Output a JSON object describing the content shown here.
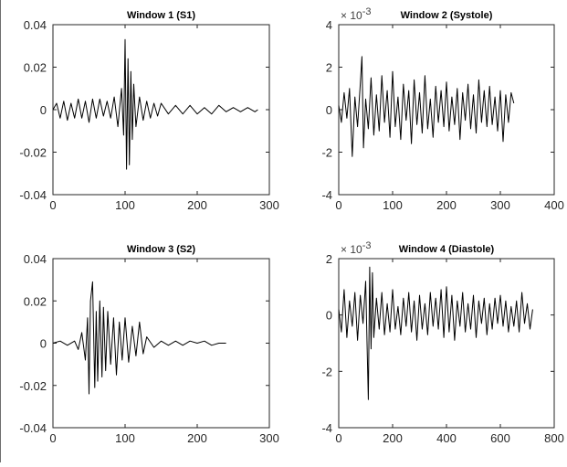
{
  "chart_data": [
    {
      "type": "line",
      "title": "Window 1 (S1)",
      "exponent_label": "",
      "xlim": [
        0,
        300
      ],
      "ylim": [
        -0.04,
        0.04
      ],
      "xticks": [
        0,
        100,
        200,
        300
      ],
      "yticks": [
        -0.04,
        -0.02,
        0,
        0.02,
        0.04
      ],
      "xtick_labels": [
        "0",
        "100",
        "200",
        "300"
      ],
      "ytick_labels": [
        "-0.04",
        "-0.02",
        "0",
        "0.02",
        "0.04"
      ],
      "grid": false,
      "series": [
        {
          "color": "#000000",
          "x": [
            0,
            5,
            10,
            15,
            20,
            25,
            30,
            35,
            40,
            45,
            50,
            55,
            60,
            65,
            70,
            75,
            80,
            85,
            90,
            95,
            98,
            100,
            102,
            104,
            106,
            108,
            110,
            112,
            115,
            120,
            125,
            130,
            135,
            140,
            145,
            150,
            160,
            170,
            180,
            190,
            200,
            210,
            220,
            230,
            240,
            250,
            260,
            270,
            280,
            284
          ],
          "y": [
            0.0,
            0.003,
            -0.004,
            0.004,
            -0.005,
            0.003,
            -0.004,
            0.005,
            -0.004,
            0.004,
            -0.006,
            0.005,
            -0.004,
            0.005,
            -0.003,
            0.004,
            -0.004,
            0.006,
            -0.008,
            0.01,
            -0.012,
            0.033,
            -0.028,
            0.024,
            -0.026,
            0.018,
            -0.014,
            0.012,
            -0.008,
            0.006,
            -0.005,
            0.004,
            -0.004,
            0.003,
            -0.003,
            0.003,
            -0.002,
            0.002,
            -0.002,
            0.002,
            -0.002,
            0.001,
            -0.002,
            0.002,
            -0.001,
            0.001,
            -0.001,
            0.001,
            -0.001,
            0.0
          ]
        }
      ]
    },
    {
      "type": "line",
      "title": "Window 2 (Systole)",
      "exponent_label": "× 10-3",
      "xlim": [
        0,
        400
      ],
      "ylim": [
        -4,
        4
      ],
      "xticks": [
        0,
        100,
        200,
        300,
        400
      ],
      "yticks": [
        -4,
        -2,
        0,
        2,
        4
      ],
      "xtick_labels": [
        "0",
        "100",
        "200",
        "300",
        "400"
      ],
      "ytick_labels": [
        "-4",
        "-2",
        "0",
        "2",
        "4"
      ],
      "grid": false,
      "series": [
        {
          "color": "#000000",
          "x": [
            0,
            5,
            10,
            15,
            20,
            25,
            30,
            35,
            40,
            43,
            46,
            50,
            55,
            60,
            65,
            70,
            75,
            80,
            85,
            90,
            95,
            100,
            105,
            110,
            115,
            120,
            125,
            130,
            135,
            140,
            145,
            150,
            155,
            160,
            165,
            170,
            175,
            180,
            185,
            190,
            195,
            200,
            205,
            210,
            215,
            220,
            225,
            230,
            235,
            240,
            245,
            250,
            255,
            260,
            265,
            270,
            275,
            280,
            285,
            290,
            295,
            300,
            305,
            310,
            315,
            320,
            325
          ],
          "y": [
            0.2,
            -0.6,
            0.8,
            -0.4,
            1.0,
            -2.2,
            0.6,
            -0.8,
            1.2,
            2.5,
            -1.8,
            0.5,
            -0.9,
            1.5,
            -1.2,
            0.7,
            -1.0,
            1.6,
            -0.6,
            0.9,
            -1.3,
            1.8,
            -0.8,
            0.6,
            -1.4,
            1.2,
            -0.5,
            0.9,
            -1.6,
            1.4,
            -0.7,
            0.8,
            -1.1,
            1.6,
            -0.9,
            0.5,
            -1.3,
            1.1,
            -0.6,
            0.9,
            -0.8,
            1.3,
            -1.0,
            0.6,
            -0.7,
            1.0,
            -1.4,
            0.8,
            -0.5,
            1.2,
            -0.9,
            0.7,
            -1.1,
            1.4,
            -0.6,
            0.9,
            -0.8,
            1.1,
            -0.7,
            0.6,
            -1.0,
            0.9,
            -1.5,
            0.7,
            -0.6,
            0.8,
            0.3
          ]
        }
      ]
    },
    {
      "type": "line",
      "title": "Window 3 (S2)",
      "exponent_label": "",
      "xlim": [
        0,
        300
      ],
      "ylim": [
        -0.04,
        0.04
      ],
      "xticks": [
        0,
        100,
        200,
        300
      ],
      "yticks": [
        -0.04,
        -0.02,
        0,
        0.02,
        0.04
      ],
      "xtick_labels": [
        "0",
        "100",
        "200",
        "300"
      ],
      "ytick_labels": [
        "-0.04",
        "-0.02",
        "0",
        "0.02",
        "0.04"
      ],
      "grid": false,
      "series": [
        {
          "color": "#000000",
          "x": [
            0,
            10,
            20,
            30,
            35,
            40,
            45,
            48,
            50,
            52,
            55,
            58,
            60,
            62,
            65,
            68,
            70,
            73,
            76,
            80,
            84,
            88,
            92,
            96,
            100,
            105,
            110,
            115,
            120,
            125,
            130,
            140,
            150,
            160,
            170,
            180,
            190,
            200,
            210,
            220,
            230,
            240
          ],
          "y": [
            0.0,
            0.001,
            -0.001,
            0.001,
            -0.003,
            0.005,
            -0.008,
            0.012,
            -0.024,
            0.02,
            0.029,
            -0.021,
            0.015,
            -0.018,
            0.02,
            -0.016,
            0.017,
            -0.013,
            0.015,
            -0.01,
            0.012,
            -0.015,
            0.01,
            -0.008,
            0.012,
            -0.009,
            0.008,
            -0.006,
            0.01,
            -0.005,
            0.003,
            -0.002,
            0.001,
            -0.001,
            0.001,
            -0.001,
            0.001,
            0.0,
            0.001,
            -0.001,
            0.0,
            0.0
          ]
        }
      ]
    },
    {
      "type": "line",
      "title": "Window 4 (Diastole)",
      "exponent_label": "× 10-3",
      "xlim": [
        0,
        800
      ],
      "ylim": [
        -4,
        2
      ],
      "xticks": [
        0,
        200,
        400,
        600,
        800
      ],
      "yticks": [
        -4,
        -2,
        0,
        2
      ],
      "xtick_labels": [
        "0",
        "200",
        "400",
        "600",
        "800"
      ],
      "ytick_labels": [
        "-4",
        "-2",
        "0",
        "2"
      ],
      "grid": false,
      "series": [
        {
          "color": "#000000",
          "x": [
            0,
            10,
            20,
            30,
            40,
            50,
            60,
            70,
            80,
            90,
            100,
            105,
            110,
            115,
            120,
            125,
            130,
            140,
            150,
            160,
            170,
            180,
            190,
            200,
            210,
            220,
            230,
            240,
            250,
            260,
            270,
            280,
            290,
            300,
            310,
            320,
            330,
            340,
            350,
            360,
            370,
            380,
            390,
            400,
            410,
            420,
            430,
            440,
            450,
            460,
            470,
            480,
            490,
            500,
            510,
            520,
            530,
            540,
            550,
            560,
            570,
            580,
            590,
            600,
            610,
            620,
            630,
            640,
            650,
            660,
            670,
            680,
            690,
            700,
            710,
            720
          ],
          "y": [
            0.2,
            -0.6,
            0.9,
            -0.8,
            0.5,
            -0.4,
            0.8,
            -0.9,
            0.7,
            -0.3,
            1.2,
            -1.0,
            -3.0,
            1.7,
            -1.2,
            1.5,
            -0.8,
            0.6,
            -0.5,
            0.8,
            -0.7,
            0.4,
            -0.6,
            0.9,
            -0.5,
            0.3,
            -0.7,
            0.6,
            -0.4,
            0.8,
            -0.6,
            0.5,
            -0.9,
            0.7,
            -0.5,
            0.4,
            -0.7,
            0.8,
            -0.4,
            0.6,
            -0.5,
            0.9,
            -0.8,
            1.0,
            -0.6,
            0.7,
            -0.9,
            0.5,
            -0.4,
            0.8,
            -0.6,
            0.4,
            -0.5,
            0.7,
            -0.8,
            0.5,
            -0.3,
            0.6,
            -0.7,
            0.4,
            -0.5,
            0.6,
            -0.3,
            0.7,
            -0.4,
            0.5,
            -0.6,
            0.3,
            -0.4,
            0.5,
            -0.6,
            0.8,
            -0.3,
            0.4,
            -0.5,
            0.2
          ]
        }
      ]
    }
  ]
}
